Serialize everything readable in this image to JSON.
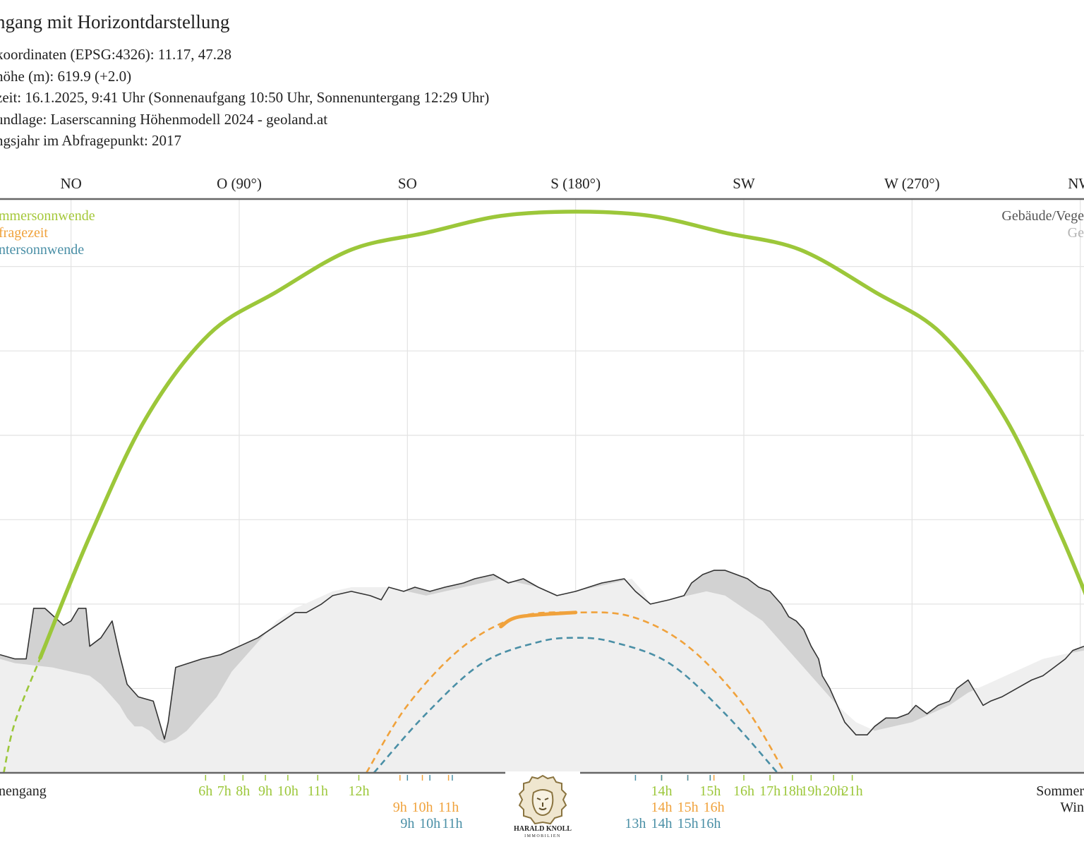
{
  "header": {
    "title": "ngang mit Horizontdarstellung",
    "lines": [
      "koordinaten (EPSG:4326): 11.17, 47.28",
      "höhe (m): 619.9 (+2.0)",
      "zeit: 16.1.2025, 9:41 Uhr (Sonnenaufgang 10:50 Uhr,  Sonnenuntergang 12:29 Uhr)",
      "undlage: Laserscanning Höhenmodell 2024 - geoland.at",
      "ngsjahr im Abfragepunkt: 2017"
    ]
  },
  "logo": {
    "text_line1": "HARALD KNOLL",
    "text_line2": "IMMOBILIEN",
    "icon": "lion-head-icon"
  },
  "chart_data": {
    "type": "line",
    "x_axis": {
      "unit": "azimuth degrees",
      "range": [
        26,
        316
      ],
      "direction_labels": [
        {
          "az": 45,
          "label": "NO"
        },
        {
          "az": 90,
          "label": "O (90°)"
        },
        {
          "az": 135,
          "label": "SO"
        },
        {
          "az": 180,
          "label": "S (180°)"
        },
        {
          "az": 225,
          "label": "SW"
        },
        {
          "az": 270,
          "label": "W (270°)"
        },
        {
          "az": 315,
          "label": "NW"
        }
      ]
    },
    "y_axis": {
      "unit": "elevation degrees",
      "range": [
        0,
        68
      ],
      "gridlines": [
        10,
        20,
        30,
        40,
        50,
        60
      ]
    },
    "grid": true,
    "legend_left": [
      {
        "label": "mmersonnwende",
        "color": "#a5c83a"
      },
      {
        "label": "fragezeit",
        "color": "#f0a23c"
      },
      {
        "label": "ntersonnwende",
        "color": "#4a8fa6"
      }
    ],
    "legend_right": [
      {
        "label": "Gebäude/Vege",
        "color": "#555555"
      },
      {
        "label": "Ge",
        "color": "#b4b4b4"
      }
    ],
    "colors": {
      "summer": "#9cc73a",
      "query": "#f0a23c",
      "winter": "#4a8fa6",
      "horizon_fill": "#d2d2d2",
      "terrain_fill": "#efefef",
      "horizon_line": "#333333"
    },
    "series": [
      {
        "key": "summer",
        "curve": [
          [
            27,
            0
          ],
          [
            30,
            6
          ],
          [
            38,
            15
          ],
          [
            50,
            28
          ],
          [
            65,
            42
          ],
          [
            82,
            52
          ],
          [
            100,
            57
          ],
          [
            120,
            62
          ],
          [
            140,
            64
          ],
          [
            160,
            66
          ],
          [
            180,
            66.5
          ],
          [
            200,
            66
          ],
          [
            220,
            64
          ],
          [
            240,
            62
          ],
          [
            260,
            57
          ],
          [
            278,
            52
          ],
          [
            295,
            42
          ],
          [
            310,
            28
          ],
          [
            322,
            15
          ],
          [
            330,
            6
          ],
          [
            333,
            0
          ]
        ],
        "hidden_below_x": 37,
        "hidden_above_x": 323,
        "time_labels": [
          "6h",
          "7h",
          "8h",
          "9h",
          "10h",
          "11h",
          "12h",
          "14h",
          "15h",
          "16h",
          "17h",
          "18h",
          "19h",
          "20h",
          "21h"
        ],
        "time_label_az": [
          81,
          86,
          91,
          97,
          103,
          111,
          122,
          203,
          216,
          225,
          232,
          238,
          243,
          249,
          254
        ]
      },
      {
        "key": "query",
        "curve": [
          [
            124,
            0
          ],
          [
            135,
            8
          ],
          [
            150,
            15
          ],
          [
            165,
            18.5
          ],
          [
            180,
            19
          ],
          [
            195,
            18.5
          ],
          [
            210,
            15
          ],
          [
            225,
            8
          ],
          [
            236,
            0
          ]
        ],
        "visible_segment": [
          160,
          180
        ],
        "time_labels": [
          "9h",
          "10h",
          "11h",
          "14h",
          "15h",
          "16h"
        ],
        "time_label_az": [
          133,
          139,
          146,
          203,
          210,
          217
        ]
      },
      {
        "key": "winter",
        "curve": [
          [
            126,
            0
          ],
          [
            140,
            7
          ],
          [
            155,
            13
          ],
          [
            170,
            15.5
          ],
          [
            180,
            16
          ],
          [
            190,
            15.5
          ],
          [
            205,
            13
          ],
          [
            220,
            7
          ],
          [
            234,
            0
          ]
        ],
        "time_labels": [
          "9h",
          "10h",
          "11h",
          "13h",
          "14h",
          "15h",
          "16h"
        ],
        "time_label_az": [
          135,
          141,
          147,
          196,
          203,
          210,
          216
        ]
      }
    ],
    "horizon_buildings": [
      [
        26,
        14
      ],
      [
        30,
        13.5
      ],
      [
        33,
        13.5
      ],
      [
        35,
        19.5
      ],
      [
        38,
        19.5
      ],
      [
        43,
        17.5
      ],
      [
        45,
        18
      ],
      [
        47,
        19.5
      ],
      [
        49,
        19.5
      ],
      [
        50,
        15
      ],
      [
        53,
        16
      ],
      [
        56,
        18
      ],
      [
        57,
        16
      ],
      [
        58,
        14
      ],
      [
        60,
        10.5
      ],
      [
        63,
        9
      ],
      [
        67,
        8.5
      ],
      [
        68,
        7
      ],
      [
        70,
        4
      ],
      [
        71,
        6
      ],
      [
        73,
        12.5
      ],
      [
        80,
        13.5
      ],
      [
        85,
        14
      ],
      [
        90,
        15
      ],
      [
        95,
        16
      ],
      [
        100,
        17.5
      ],
      [
        105,
        19
      ],
      [
        108,
        19
      ],
      [
        112,
        20
      ],
      [
        115,
        21
      ],
      [
        120,
        21.5
      ],
      [
        125,
        21
      ],
      [
        128,
        20.5
      ],
      [
        130,
        22
      ],
      [
        134,
        21.5
      ],
      [
        137,
        22
      ],
      [
        141,
        21.5
      ],
      [
        145,
        22
      ],
      [
        150,
        22.5
      ],
      [
        153,
        23
      ],
      [
        158,
        23.5
      ],
      [
        162,
        22.5
      ],
      [
        166,
        23
      ],
      [
        170,
        22
      ],
      [
        175,
        21
      ],
      [
        180,
        21.5
      ],
      [
        187,
        22.5
      ],
      [
        193,
        23
      ],
      [
        196,
        21.5
      ],
      [
        200,
        20
      ],
      [
        205,
        20.5
      ],
      [
        209,
        21
      ],
      [
        211,
        22.5
      ],
      [
        214,
        23.5
      ],
      [
        217,
        24
      ],
      [
        220,
        24
      ],
      [
        223,
        23.5
      ],
      [
        226,
        23
      ],
      [
        229,
        22
      ],
      [
        232,
        21.5
      ],
      [
        235,
        20
      ],
      [
        237,
        18.5
      ],
      [
        239,
        18
      ],
      [
        241,
        17
      ],
      [
        243,
        15
      ],
      [
        245,
        13.5
      ],
      [
        246,
        11.5
      ],
      [
        248,
        10
      ],
      [
        250,
        8
      ],
      [
        252,
        6
      ],
      [
        254,
        5
      ],
      [
        255,
        4.5
      ],
      [
        258,
        4.5
      ],
      [
        260,
        5.5
      ],
      [
        263,
        6.5
      ],
      [
        266,
        6.5
      ],
      [
        269,
        7
      ],
      [
        271,
        8
      ],
      [
        274,
        7
      ],
      [
        277,
        8
      ],
      [
        280,
        8.5
      ],
      [
        282,
        10
      ],
      [
        285,
        11
      ],
      [
        287,
        9.5
      ],
      [
        289,
        8
      ],
      [
        291,
        8.5
      ],
      [
        294,
        9
      ],
      [
        298,
        10
      ],
      [
        302,
        11
      ],
      [
        305,
        11.5
      ],
      [
        308,
        12.5
      ],
      [
        311,
        13.5
      ],
      [
        313,
        14.5
      ],
      [
        316,
        15
      ]
    ],
    "terrain": [
      [
        26,
        13.5
      ],
      [
        30,
        13
      ],
      [
        40,
        12.5
      ],
      [
        50,
        11.5
      ],
      [
        53,
        10.5
      ],
      [
        56,
        9
      ],
      [
        58,
        8
      ],
      [
        60,
        6.5
      ],
      [
        62,
        5.5
      ],
      [
        64,
        5.5
      ],
      [
        66,
        5
      ],
      [
        68,
        4
      ],
      [
        70,
        3.5
      ],
      [
        73,
        4
      ],
      [
        76,
        5
      ],
      [
        80,
        7
      ],
      [
        84,
        9
      ],
      [
        88,
        12
      ],
      [
        92,
        14
      ],
      [
        96,
        16
      ],
      [
        100,
        18
      ],
      [
        105,
        19.5
      ],
      [
        110,
        20.5
      ],
      [
        115,
        21.5
      ],
      [
        120,
        22
      ],
      [
        125,
        22
      ],
      [
        130,
        22
      ],
      [
        135,
        21.5
      ],
      [
        140,
        21
      ],
      [
        145,
        21.5
      ],
      [
        150,
        22
      ],
      [
        155,
        22.5
      ],
      [
        160,
        23
      ],
      [
        165,
        22.5
      ],
      [
        170,
        22
      ],
      [
        175,
        21
      ],
      [
        180,
        21.5
      ],
      [
        185,
        22
      ],
      [
        190,
        22.5
      ],
      [
        195,
        23
      ],
      [
        198,
        21.5
      ],
      [
        200,
        20
      ],
      [
        205,
        20.5
      ],
      [
        210,
        21
      ],
      [
        215,
        21.5
      ],
      [
        220,
        21
      ],
      [
        225,
        19.5
      ],
      [
        230,
        18
      ],
      [
        235,
        15.5
      ],
      [
        240,
        13
      ],
      [
        245,
        10.5
      ],
      [
        250,
        8
      ],
      [
        255,
        6
      ],
      [
        260,
        5
      ],
      [
        265,
        5.5
      ],
      [
        270,
        6
      ],
      [
        275,
        7
      ],
      [
        280,
        8
      ],
      [
        285,
        9.5
      ],
      [
        290,
        10.5
      ],
      [
        295,
        11.5
      ],
      [
        300,
        12.5
      ],
      [
        305,
        13.5
      ],
      [
        310,
        14
      ],
      [
        316,
        14.5
      ]
    ],
    "bottom_labels": [
      {
        "label": "nengang",
        "anchor": "left"
      },
      {
        "label": "Sommer",
        "anchor": "right"
      },
      {
        "label": "Win",
        "anchor": "right"
      }
    ]
  }
}
